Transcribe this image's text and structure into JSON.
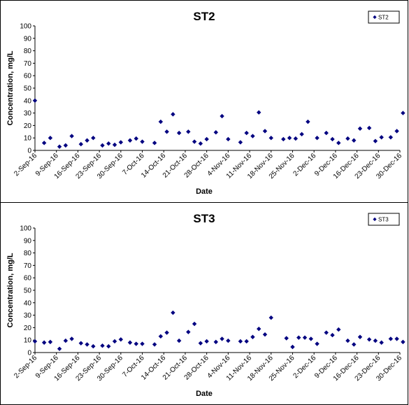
{
  "chart_data": [
    {
      "type": "scatter",
      "title": "ST2",
      "xlabel": "Date",
      "ylabel": "Concentration, mg/L",
      "ylim": [
        0,
        100
      ],
      "yticks": [
        "0",
        "10",
        "20",
        "30",
        "40",
        "50",
        "60",
        "70",
        "80",
        "90",
        "100"
      ],
      "xticks": [
        "2-Sep-16",
        "9-Sep-16",
        "16-Sep-16",
        "23-Sep-16",
        "30-Sep-16",
        "7-Oct-16",
        "14-Oct-16",
        "21-Oct-16",
        "28-Oct-16",
        "4-Nov-16",
        "11-Nov-16",
        "18-Nov-16",
        "25-Nov-16",
        "2-Dec-16",
        "9-Dec-16",
        "16-Dec-16",
        "23-Dec-16",
        "30-Dec-16"
      ],
      "xlim": [
        "2-Sep-16",
        "30-Dec-16"
      ],
      "grid": false,
      "legend": "top-right",
      "marker_color": "#000080",
      "series": [
        {
          "name": "ST2",
          "points": [
            [
              "2-Sep-16",
              40
            ],
            [
              "5-Sep-16",
              6
            ],
            [
              "7-Sep-16",
              10
            ],
            [
              "10-Sep-16",
              3
            ],
            [
              "12-Sep-16",
              4
            ],
            [
              "14-Sep-16",
              11.5
            ],
            [
              "17-Sep-16",
              5
            ],
            [
              "19-Sep-16",
              8
            ],
            [
              "21-Sep-16",
              10
            ],
            [
              "24-Sep-16",
              4
            ],
            [
              "26-Sep-16",
              5.5
            ],
            [
              "28-Sep-16",
              4.5
            ],
            [
              "30-Sep-16",
              6.5
            ],
            [
              "3-Oct-16",
              8
            ],
            [
              "5-Oct-16",
              9.5
            ],
            [
              "7-Oct-16",
              7
            ],
            [
              "11-Oct-16",
              6
            ],
            [
              "13-Oct-16",
              23
            ],
            [
              "15-Oct-16",
              15
            ],
            [
              "17-Oct-16",
              29
            ],
            [
              "19-Oct-16",
              14
            ],
            [
              "22-Oct-16",
              15
            ],
            [
              "24-Oct-16",
              7
            ],
            [
              "26-Oct-16",
              5.5
            ],
            [
              "28-Oct-16",
              9
            ],
            [
              "31-Oct-16",
              14.5
            ],
            [
              "2-Nov-16",
              27.5
            ],
            [
              "4-Nov-16",
              9
            ],
            [
              "8-Nov-16",
              6.5
            ],
            [
              "10-Nov-16",
              14
            ],
            [
              "12-Nov-16",
              11.5
            ],
            [
              "14-Nov-16",
              30.5
            ],
            [
              "16-Nov-16",
              15.5
            ],
            [
              "18-Nov-16",
              10
            ],
            [
              "22-Nov-16",
              9
            ],
            [
              "24-Nov-16",
              10
            ],
            [
              "26-Nov-16",
              9.5
            ],
            [
              "28-Nov-16",
              13
            ],
            [
              "30-Nov-16",
              23
            ],
            [
              "3-Dec-16",
              10
            ],
            [
              "6-Dec-16",
              14
            ],
            [
              "8-Dec-16",
              9
            ],
            [
              "10-Dec-16",
              6
            ],
            [
              "13-Dec-16",
              9.5
            ],
            [
              "15-Dec-16",
              8
            ],
            [
              "17-Dec-16",
              17.5
            ],
            [
              "20-Dec-16",
              18
            ],
            [
              "22-Dec-16",
              7.5
            ],
            [
              "24-Dec-16",
              10.5
            ],
            [
              "27-Dec-16",
              10.5
            ],
            [
              "29-Dec-16",
              15.5
            ],
            [
              "31-Dec-16",
              30
            ]
          ]
        }
      ]
    },
    {
      "type": "scatter",
      "title": "ST3",
      "xlabel": "Date",
      "ylabel": "Concentration, mg/L",
      "ylim": [
        0,
        100
      ],
      "yticks": [
        "0",
        "10",
        "20",
        "30",
        "40",
        "50",
        "60",
        "70",
        "80",
        "90",
        "100"
      ],
      "xticks": [
        "2-Sep-16",
        "9-Sep-16",
        "16-Sep-16",
        "23-Sep-16",
        "30-Sep-16",
        "7-Oct-16",
        "14-Oct-16",
        "21-Oct-16",
        "28-Oct-16",
        "4-Nov-16",
        "11-Nov-16",
        "18-Nov-16",
        "25-Nov-16",
        "2-Dec-16",
        "9-Dec-16",
        "16-Dec-16",
        "23-Dec-16",
        "30-Dec-16"
      ],
      "xlim": [
        "2-Sep-16",
        "30-Dec-16"
      ],
      "grid": false,
      "legend": "top-right",
      "marker_color": "#000080",
      "series": [
        {
          "name": "ST3",
          "points": [
            [
              "2-Sep-16",
              9
            ],
            [
              "5-Sep-16",
              8
            ],
            [
              "7-Sep-16",
              8.5
            ],
            [
              "10-Sep-16",
              3
            ],
            [
              "12-Sep-16",
              9.5
            ],
            [
              "14-Sep-16",
              11
            ],
            [
              "17-Sep-16",
              7.5
            ],
            [
              "19-Sep-16",
              6.5
            ],
            [
              "21-Sep-16",
              5
            ],
            [
              "24-Sep-16",
              5.5
            ],
            [
              "26-Sep-16",
              5
            ],
            [
              "28-Sep-16",
              9
            ],
            [
              "30-Sep-16",
              10.5
            ],
            [
              "3-Oct-16",
              8
            ],
            [
              "5-Oct-16",
              7
            ],
            [
              "7-Oct-16",
              7
            ],
            [
              "11-Oct-16",
              6.5
            ],
            [
              "13-Oct-16",
              13
            ],
            [
              "15-Oct-16",
              16
            ],
            [
              "17-Oct-16",
              32
            ],
            [
              "19-Oct-16",
              9.5
            ],
            [
              "22-Oct-16",
              16.5
            ],
            [
              "24-Oct-16",
              23
            ],
            [
              "26-Oct-16",
              7.5
            ],
            [
              "28-Oct-16",
              9
            ],
            [
              "31-Oct-16",
              8.5
            ],
            [
              "2-Nov-16",
              11
            ],
            [
              "4-Nov-16",
              9.5
            ],
            [
              "8-Nov-16",
              9
            ],
            [
              "10-Nov-16",
              9
            ],
            [
              "12-Nov-16",
              12.5
            ],
            [
              "14-Nov-16",
              19
            ],
            [
              "16-Nov-16",
              14.5
            ],
            [
              "18-Nov-16",
              28
            ],
            [
              "23-Nov-16",
              11.5
            ],
            [
              "25-Nov-16",
              4.5
            ],
            [
              "27-Nov-16",
              12
            ],
            [
              "29-Nov-16",
              12
            ],
            [
              "1-Dec-16",
              11
            ],
            [
              "3-Dec-16",
              7
            ],
            [
              "6-Dec-16",
              16
            ],
            [
              "8-Dec-16",
              14
            ],
            [
              "10-Dec-16",
              18.5
            ],
            [
              "13-Dec-16",
              9.5
            ],
            [
              "15-Dec-16",
              6.5
            ],
            [
              "17-Dec-16",
              12.5
            ],
            [
              "20-Dec-16",
              10.5
            ],
            [
              "22-Dec-16",
              9.5
            ],
            [
              "24-Dec-16",
              8
            ],
            [
              "27-Dec-16",
              11
            ],
            [
              "29-Dec-16",
              11
            ],
            [
              "31-Dec-16",
              8.5
            ]
          ]
        }
      ]
    }
  ]
}
